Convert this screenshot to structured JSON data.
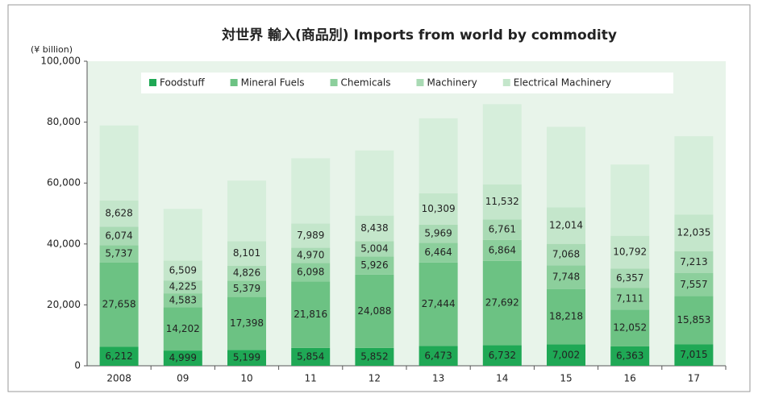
{
  "chart_data": {
    "type": "stacked_bar",
    "title": "対世界 輸入(商品別) Imports from world by commodity",
    "y_label": "(¥ billion)",
    "categories": [
      "2008",
      "09",
      "10",
      "11",
      "12",
      "13",
      "14",
      "15",
      "16",
      "17"
    ],
    "series": [
      {
        "name": "Foodstuff",
        "color": "#1fa855",
        "values": [
          6212,
          4999,
          5199,
          5854,
          5852,
          6473,
          6732,
          7002,
          6363,
          7015
        ],
        "value_labels": [
          "6,212",
          "4,999",
          "5,199",
          "5,854",
          "5,852",
          "6,473",
          "6,732",
          "7,002",
          "6,363",
          "7,015"
        ]
      },
      {
        "name": "Mineral Fuels",
        "color": "#6cc283",
        "values": [
          27658,
          14202,
          17398,
          21816,
          24088,
          27444,
          27692,
          18218,
          12052,
          15853
        ],
        "value_labels": [
          "27,658",
          "14,202",
          "17,398",
          "21,816",
          "24,088",
          "27,444",
          "27,692",
          "18,218",
          "12,052",
          "15,853"
        ]
      },
      {
        "name": "Chemicals",
        "color": "#8ccf9c",
        "values": [
          5737,
          4583,
          5379,
          6098,
          5926,
          6464,
          6864,
          7748,
          7111,
          7557
        ],
        "value_labels": [
          "5,737",
          "4,583",
          "5,379",
          "6,098",
          "5,926",
          "6,464",
          "6,864",
          "7,748",
          "7,111",
          "7,557"
        ]
      },
      {
        "name": "Machinery",
        "color": "#a9dab4",
        "values": [
          6074,
          4225,
          4826,
          4970,
          5004,
          5969,
          6761,
          7068,
          6357,
          7213
        ],
        "value_labels": [
          "6,074",
          "4,225",
          "4,826",
          "4,970",
          "5,004",
          "5,969",
          "6,761",
          "7,068",
          "6,357",
          "7,213"
        ]
      },
      {
        "name": "Electrical Machinery",
        "color": "#c4e6cb",
        "values": [
          8628,
          6509,
          8101,
          7989,
          8438,
          10309,
          11532,
          12014,
          10792,
          12035
        ],
        "value_labels": [
          "8,628",
          "6,509",
          "8,101",
          "7,989",
          "8,438",
          "10,309",
          "11,532",
          "12,014",
          "10,792",
          "12,035"
        ]
      },
      {
        "color": "#d6eedb",
        "values": [
          24600,
          17000,
          19900,
          21400,
          21400,
          24600,
          26300,
          26400,
          23400,
          25700
        ]
      }
    ],
    "ylim": [
      0,
      100000
    ],
    "yticks": [
      0,
      {
        "value": 20000,
        "label": "20,000"
      },
      {
        "value": 40000,
        "label": "40,000"
      },
      {
        "value": 60000,
        "label": "60,000"
      },
      {
        "value": 80000,
        "label": "80,000"
      },
      {
        "value": 100000,
        "label": "100,000"
      }
    ],
    "legend": "top"
  }
}
